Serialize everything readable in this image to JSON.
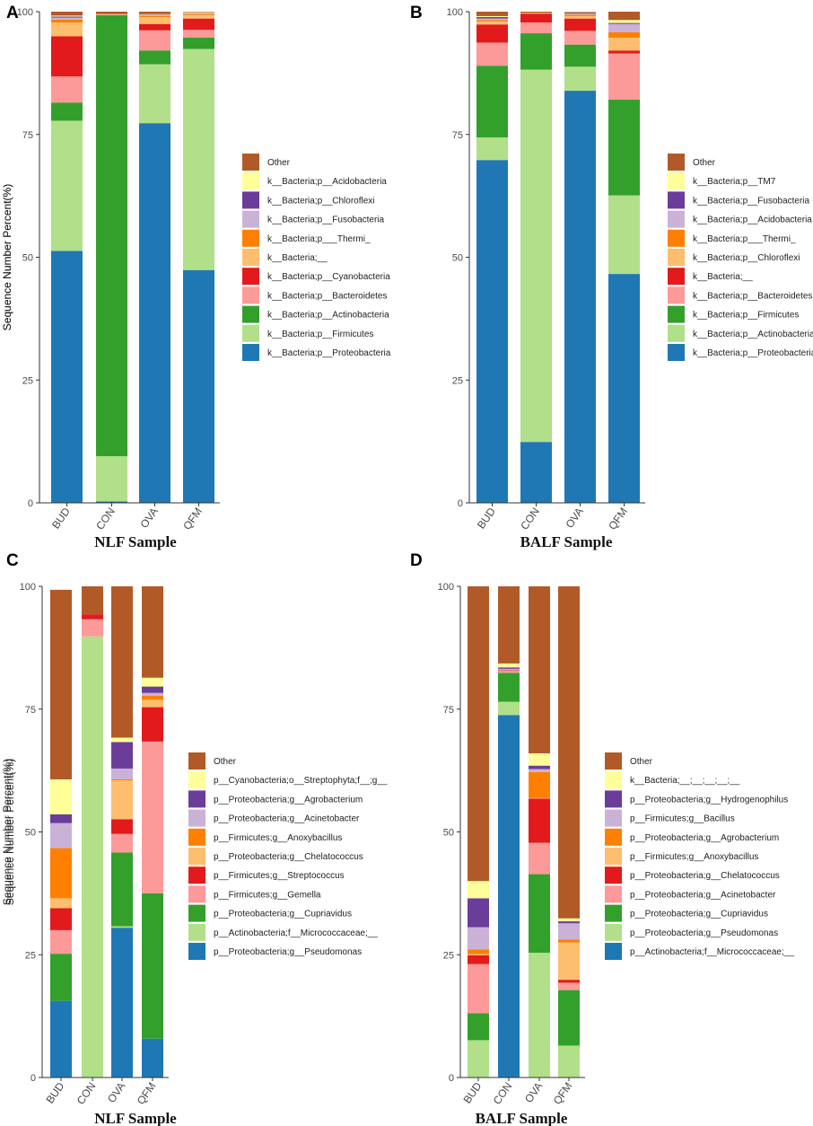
{
  "colors": {
    "Other": "#b15a28",
    "c1": "#ffff99",
    "c2": "#6a3d9a",
    "c3": "#cab2d6",
    "c4": "#ff7f00",
    "c5": "#fdbf6f",
    "c6": "#e31a1c",
    "c7": "#fb9a99",
    "c8": "#33a02c",
    "c9": "#b2df8a",
    "c10": "#1f78b4"
  },
  "chart_data": [
    {
      "panel": "A",
      "type": "bar",
      "stacked": true,
      "title": "",
      "xlabel": "NLF Sample",
      "ylabel": "Sequence Number Percent(%)",
      "ylim": [
        0,
        100
      ],
      "yticks": [
        "0",
        "25",
        "50",
        "75",
        "100"
      ],
      "categories": [
        "BUD",
        "CON",
        "OVA",
        "QFM"
      ],
      "legend": [
        "Other",
        "k__Bacteria;p__Acidobacteria",
        "k__Bacteria;p__Chloroflexi",
        "k__Bacteria;p__Fusobacteria",
        "k__Bacteria;p___Thermi_",
        "k__Bacteria;__",
        "k__Bacteria;p__Cyanobacteria",
        "k__Bacteria;p__Bacteroidetes",
        "k__Bacteria;p__Actinobacteria",
        "k__Bacteria;p__Firmicutes",
        "k__Bacteria;p__Proteobacteria"
      ],
      "series": [
        {
          "name": "k__Bacteria;p__Proteobacteria",
          "values": [
            51.3,
            0.3,
            77.3,
            47.4
          ]
        },
        {
          "name": "k__Bacteria;p__Firmicutes",
          "values": [
            26.5,
            9.2,
            12.0,
            45.0
          ]
        },
        {
          "name": "k__Bacteria;p__Actinobacteria",
          "values": [
            3.7,
            89.8,
            2.8,
            2.3
          ]
        },
        {
          "name": "k__Bacteria;p__Bacteroidetes",
          "values": [
            5.3,
            0.1,
            4.1,
            1.6
          ]
        },
        {
          "name": "k__Bacteria;p__Cyanobacteria",
          "values": [
            8.2,
            0.0,
            1.3,
            2.3
          ]
        },
        {
          "name": "k__Bacteria;__",
          "values": [
            2.8,
            0.1,
            1.4,
            0.7
          ]
        },
        {
          "name": "k__Bacteria;p___Thermi_",
          "values": [
            0.6,
            0.0,
            0.2,
            0.2
          ]
        },
        {
          "name": "k__Bacteria;p__Fusobacteria",
          "values": [
            0.4,
            0.0,
            0.2,
            0.1
          ]
        },
        {
          "name": "k__Bacteria;p__Chloroflexi",
          "values": [
            0.2,
            0.0,
            0.1,
            0.1
          ]
        },
        {
          "name": "k__Bacteria;p__Acidobacteria",
          "values": [
            0.2,
            0.0,
            0.1,
            0.2
          ]
        },
        {
          "name": "Other",
          "values": [
            0.8,
            0.5,
            0.5,
            0.1
          ]
        }
      ]
    },
    {
      "panel": "B",
      "type": "bar",
      "stacked": true,
      "title": "",
      "xlabel": "BALF Sample",
      "ylabel": "Sequence Number Percent(%)",
      "ylim": [
        0,
        100
      ],
      "yticks": [
        "0",
        "25",
        "50",
        "75",
        "100"
      ],
      "categories": [
        "BUD",
        "CON",
        "OVA",
        "QFM"
      ],
      "legend": [
        "Other",
        "k__Bacteria;p__TM7",
        "k__Bacteria;p__Fusobacteria",
        "k__Bacteria;p__Acidobacteria",
        "k__Bacteria;p___Thermi_",
        "k__Bacteria;p__Chloroflexi",
        "k__Bacteria;__",
        "k__Bacteria;p__Bacteroidetes",
        "k__Bacteria;p__Firmicutes",
        "k__Bacteria;p__Actinobacteria",
        "k__Bacteria;p__Proteobacteria"
      ],
      "series": [
        {
          "name": "k__Bacteria;p__Proteobacteria",
          "values": [
            69.8,
            12.4,
            83.9,
            46.6
          ]
        },
        {
          "name": "k__Bacteria;p__Actinobacteria",
          "values": [
            4.6,
            75.8,
            4.9,
            16.0
          ]
        },
        {
          "name": "k__Bacteria;p__Firmicutes",
          "values": [
            14.6,
            7.4,
            4.5,
            19.5
          ]
        },
        {
          "name": "k__Bacteria;p__Bacteroidetes",
          "values": [
            4.7,
            2.2,
            2.8,
            9.4
          ]
        },
        {
          "name": "k__Bacteria;__",
          "values": [
            3.7,
            1.8,
            2.5,
            0.6
          ]
        },
        {
          "name": "k__Bacteria;p__Chloroflexi",
          "values": [
            0.6,
            0.1,
            0.5,
            2.6
          ]
        },
        {
          "name": "k__Bacteria;p___Thermi_",
          "values": [
            0.3,
            0.1,
            0.3,
            1.1
          ]
        },
        {
          "name": "k__Bacteria;p__Acidobacteria",
          "values": [
            0.3,
            0.0,
            0.2,
            1.7
          ]
        },
        {
          "name": "k__Bacteria;p__Fusobacteria",
          "values": [
            0.3,
            0.0,
            0.2,
            0.2
          ]
        },
        {
          "name": "k__Bacteria;p__TM7",
          "values": [
            0.2,
            0.0,
            0.1,
            0.6
          ]
        },
        {
          "name": "Other",
          "values": [
            0.9,
            0.2,
            0.1,
            1.7
          ]
        }
      ]
    },
    {
      "panel": "C",
      "type": "bar",
      "stacked": true,
      "title": "",
      "xlabel": "NLF Sample",
      "ylabel": "Sequence Number Percent(%)",
      "ylim": [
        0,
        100
      ],
      "yticks": [
        "0",
        "25",
        "50",
        "75",
        "100"
      ],
      "categories": [
        "BUD",
        "CON",
        "OVA",
        "QFM"
      ],
      "legend": [
        "Other",
        "p__Cyanobacteria;o__Streptophyta;f__;g__",
        "p__Proteobacteria;g__Agrobacterium",
        "p__Proteobacteria;g__Acinetobacter",
        "p__Firmicutes;g__Anoxybacillus",
        "p__Proteobacteria;g__Chelatococcus",
        "p__Firmicutes;g__Streptococcus",
        "p__Firmicutes;g__Gemella",
        "p__Proteobacteria;g__Cupriavidus",
        "p__Actinobacteria;f__Micrococcaceae;__",
        "p__Proteobacteria;g__Pseudomonas"
      ],
      "series": [
        {
          "name": "p__Proteobacteria;g__Pseudomonas",
          "values": [
            15.6,
            0.0,
            30.5,
            7.9
          ]
        },
        {
          "name": "p__Actinobacteria;f__Micrococcaceae;__",
          "values": [
            0.0,
            89.8,
            0.3,
            0.0
          ]
        },
        {
          "name": "p__Proteobacteria;g__Cupriavidus",
          "values": [
            9.6,
            0.0,
            15.0,
            29.6
          ]
        },
        {
          "name": "p__Firmicutes;g__Gemella",
          "values": [
            4.8,
            3.5,
            3.8,
            30.9
          ]
        },
        {
          "name": "p__Firmicutes;g__Streptococcus",
          "values": [
            4.5,
            1.0,
            3.0,
            7.0
          ]
        },
        {
          "name": "p__Proteobacteria;g__Chelatococcus",
          "values": [
            2.0,
            0.0,
            7.9,
            1.5
          ]
        },
        {
          "name": "p__Firmicutes;g__Anoxybacillus",
          "values": [
            10.2,
            0.0,
            0.2,
            0.8
          ]
        },
        {
          "name": "p__Proteobacteria;g__Acinetobacter",
          "values": [
            5.1,
            0.0,
            2.2,
            0.6
          ]
        },
        {
          "name": "p__Proteobacteria;g__Agrobacterium",
          "values": [
            1.8,
            0.0,
            5.4,
            1.3
          ]
        },
        {
          "name": "p__Cyanobacteria;o__Streptophyta;f__;g__",
          "values": [
            7.1,
            0.0,
            0.9,
            1.8
          ]
        },
        {
          "name": "Other",
          "values": [
            38.6,
            5.7,
            30.8,
            18.6
          ]
        }
      ]
    },
    {
      "panel": "D",
      "type": "bar",
      "stacked": true,
      "title": "",
      "xlabel": "BALF Sample",
      "ylabel": "Sequence Number Percent(%)",
      "ylim": [
        0,
        100
      ],
      "yticks": [
        "0",
        "25",
        "50",
        "75",
        "100"
      ],
      "categories": [
        "BUD",
        "CON",
        "OVA",
        "QFM"
      ],
      "legend": [
        "Other",
        "k__Bacteria;__;__;__;__;__",
        "p__Proteobacteria;g__Hydrogenophilus",
        "p__Firmicutes;g__Bacillus",
        "p__Proteobacteria;g__Agrobacterium",
        "p__Firmicutes;g__Anoxybacillus",
        "p__Proteobacteria;g__Chelatococcus",
        "p__Proteobacteria;g__Acinetobacter",
        "p__Proteobacteria;g__Cupriavidus",
        "p__Proteobacteria;g__Pseudomonas",
        "p__Actinobacteria;f__Micrococcaceae;__"
      ],
      "series": [
        {
          "name": "p__Actinobacteria;f__Micrococcaceae;__",
          "values": [
            0.0,
            73.8,
            0.0,
            0.0
          ]
        },
        {
          "name": "p__Proteobacteria;g__Pseudomonas",
          "values": [
            7.6,
            2.7,
            25.4,
            6.5
          ]
        },
        {
          "name": "p__Proteobacteria;g__Cupriavidus",
          "values": [
            5.5,
            5.9,
            16.0,
            11.3
          ]
        },
        {
          "name": "p__Proteobacteria;g__Acinetobacter",
          "values": [
            10.0,
            0.4,
            6.4,
            1.5
          ]
        },
        {
          "name": "p__Proteobacteria;g__Chelatococcus",
          "values": [
            1.8,
            0.1,
            9.0,
            0.6
          ]
        },
        {
          "name": "p__Firmicutes;g__Anoxybacillus",
          "values": [
            0.2,
            0.0,
            0.1,
            7.6
          ]
        },
        {
          "name": "p__Proteobacteria;g__Agrobacterium",
          "values": [
            1.0,
            0.0,
            5.3,
            0.6
          ]
        },
        {
          "name": "p__Firmicutes;g__Bacillus",
          "values": [
            4.5,
            0.3,
            0.6,
            3.3
          ]
        },
        {
          "name": "p__Proteobacteria;g__Hydrogenophilus",
          "values": [
            5.9,
            0.3,
            0.7,
            0.4
          ]
        },
        {
          "name": "k__Bacteria;__;__;__;__;__",
          "values": [
            3.5,
            0.8,
            2.5,
            0.6
          ]
        },
        {
          "name": "Other",
          "values": [
            60.0,
            15.7,
            34.0,
            67.6
          ]
        }
      ]
    }
  ]
}
